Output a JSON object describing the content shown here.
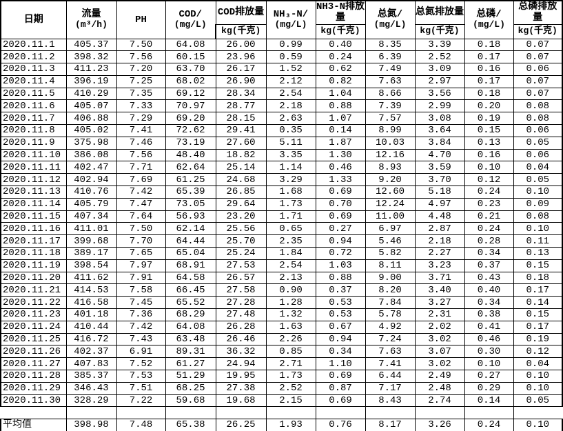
{
  "colors": {
    "background": "#ffffff",
    "text": "#000000",
    "border": "#000000"
  },
  "table": {
    "columns": [
      {
        "label": "日期",
        "unit": ""
      },
      {
        "label": "流量",
        "unit": "(m³/h)"
      },
      {
        "label": "PH",
        "unit": ""
      },
      {
        "label": "COD/",
        "unit": "(mg/L)"
      },
      {
        "label": "COD排放量",
        "unit": "kg(千克)"
      },
      {
        "label": "NH₃-N/",
        "unit": "(mg/L)"
      },
      {
        "label": "NH3-N排放量",
        "unit": "kg(千克)"
      },
      {
        "label": "总氮/",
        "unit": "(mg/L)"
      },
      {
        "label": "总氮排放量",
        "unit": "kg(千克)"
      },
      {
        "label": "总磷/",
        "unit": "(mg/L)"
      },
      {
        "label": "总磷排放量",
        "unit": "kg(千克)"
      }
    ],
    "rows": [
      [
        "2020.11.1",
        "405.37",
        "7.50",
        "64.08",
        "26.00",
        "0.99",
        "0.40",
        "8.35",
        "3.39",
        "0.18",
        "0.07"
      ],
      [
        "2020.11.2",
        "398.32",
        "7.56",
        "60.15",
        "23.96",
        "0.59",
        "0.24",
        "6.39",
        "2.52",
        "0.17",
        "0.07"
      ],
      [
        "2020.11.3",
        "411.23",
        "7.20",
        "63.70",
        "26.17",
        "1.52",
        "0.62",
        "7.49",
        "3.09",
        "0.16",
        "0.06"
      ],
      [
        "2020.11.4",
        "396.19",
        "7.25",
        "68.02",
        "26.90",
        "2.12",
        "0.82",
        "7.63",
        "2.97",
        "0.17",
        "0.07"
      ],
      [
        "2020.11.5",
        "410.29",
        "7.35",
        "69.12",
        "28.34",
        "2.54",
        "1.04",
        "8.66",
        "3.56",
        "0.18",
        "0.07"
      ],
      [
        "2020.11.6",
        "405.07",
        "7.33",
        "70.97",
        "28.77",
        "2.18",
        "0.88",
        "7.39",
        "2.99",
        "0.20",
        "0.08"
      ],
      [
        "2020.11.7",
        "406.88",
        "7.29",
        "69.20",
        "28.15",
        "2.63",
        "1.07",
        "7.57",
        "3.08",
        "0.19",
        "0.08"
      ],
      [
        "2020.11.8",
        "405.02",
        "7.41",
        "72.62",
        "29.41",
        "0.35",
        "0.14",
        "8.99",
        "3.64",
        "0.15",
        "0.06"
      ],
      [
        "2020.11.9",
        "375.98",
        "7.46",
        "73.19",
        "27.60",
        "5.11",
        "1.87",
        "10.03",
        "3.84",
        "0.13",
        "0.05"
      ],
      [
        "2020.11.10",
        "386.08",
        "7.56",
        "48.40",
        "18.82",
        "3.35",
        "1.30",
        "12.16",
        "4.70",
        "0.16",
        "0.06"
      ],
      [
        "2020.11.11",
        "402.47",
        "7.71",
        "62.64",
        "25.14",
        "1.14",
        "0.46",
        "8.93",
        "3.59",
        "0.10",
        "0.04"
      ],
      [
        "2020.11.12",
        "402.94",
        "7.69",
        "61.25",
        "24.68",
        "3.29",
        "1.33",
        "9.20",
        "3.70",
        "0.12",
        "0.05"
      ],
      [
        "2020.11.13",
        "410.76",
        "7.42",
        "65.39",
        "26.85",
        "1.68",
        "0.69",
        "12.60",
        "5.18",
        "0.24",
        "0.10"
      ],
      [
        "2020.11.14",
        "405.79",
        "7.47",
        "73.05",
        "29.64",
        "1.73",
        "0.70",
        "12.24",
        "4.97",
        "0.23",
        "0.09"
      ],
      [
        "2020.11.15",
        "407.34",
        "7.64",
        "56.93",
        "23.20",
        "1.71",
        "0.69",
        "11.00",
        "4.48",
        "0.21",
        "0.08"
      ],
      [
        "2020.11.16",
        "411.01",
        "7.50",
        "62.14",
        "25.56",
        "0.65",
        "0.27",
        "6.97",
        "2.87",
        "0.24",
        "0.10"
      ],
      [
        "2020.11.17",
        "399.68",
        "7.70",
        "64.44",
        "25.70",
        "2.35",
        "0.94",
        "5.46",
        "2.18",
        "0.28",
        "0.11"
      ],
      [
        "2020.11.18",
        "389.17",
        "7.65",
        "65.04",
        "25.24",
        "1.84",
        "0.72",
        "5.82",
        "2.27",
        "0.34",
        "0.13"
      ],
      [
        "2020.11.19",
        "398.54",
        "7.97",
        "68.91",
        "27.53",
        "2.54",
        "1.03",
        "8.11",
        "3.23",
        "0.37",
        "0.15"
      ],
      [
        "2020.11.20",
        "411.62",
        "7.91",
        "64.58",
        "26.57",
        "2.13",
        "0.88",
        "9.00",
        "3.71",
        "0.43",
        "0.18"
      ],
      [
        "2020.11.21",
        "414.53",
        "7.58",
        "66.45",
        "27.58",
        "0.90",
        "0.37",
        "8.20",
        "3.40",
        "0.40",
        "0.17"
      ],
      [
        "2020.11.22",
        "416.58",
        "7.45",
        "65.52",
        "27.28",
        "1.28",
        "0.53",
        "7.84",
        "3.27",
        "0.34",
        "0.14"
      ],
      [
        "2020.11.23",
        "401.18",
        "7.36",
        "68.29",
        "27.48",
        "1.32",
        "0.53",
        "5.78",
        "2.31",
        "0.38",
        "0.15"
      ],
      [
        "2020.11.24",
        "410.44",
        "7.42",
        "64.08",
        "26.28",
        "1.63",
        "0.67",
        "4.92",
        "2.02",
        "0.41",
        "0.17"
      ],
      [
        "2020.11.25",
        "416.72",
        "7.43",
        "63.48",
        "26.46",
        "2.26",
        "0.94",
        "7.24",
        "3.02",
        "0.46",
        "0.19"
      ],
      [
        "2020.11.26",
        "402.37",
        "6.91",
        "89.31",
        "36.32",
        "0.85",
        "0.34",
        "7.63",
        "3.07",
        "0.30",
        "0.12"
      ],
      [
        "2020.11.27",
        "407.83",
        "7.52",
        "61.27",
        "24.94",
        "2.71",
        "1.10",
        "7.41",
        "3.02",
        "0.10",
        "0.04"
      ],
      [
        "2020.11.28",
        "385.37",
        "7.53",
        "51.29",
        "19.95",
        "1.73",
        "0.69",
        "6.44",
        "2.49",
        "0.27",
        "0.10"
      ],
      [
        "2020.11.29",
        "346.43",
        "7.51",
        "68.25",
        "27.38",
        "2.52",
        "0.87",
        "7.17",
        "2.48",
        "0.29",
        "0.10"
      ],
      [
        "2020.11.30",
        "328.29",
        "7.22",
        "59.68",
        "19.68",
        "2.15",
        "0.69",
        "8.43",
        "2.74",
        "0.14",
        "0.05"
      ]
    ],
    "average_row": [
      "平均值",
      "398.98",
      "7.48",
      "65.38",
      "26.25",
      "1.93",
      "0.76",
      "8.17",
      "3.26",
      "0.24",
      "0.10"
    ]
  }
}
